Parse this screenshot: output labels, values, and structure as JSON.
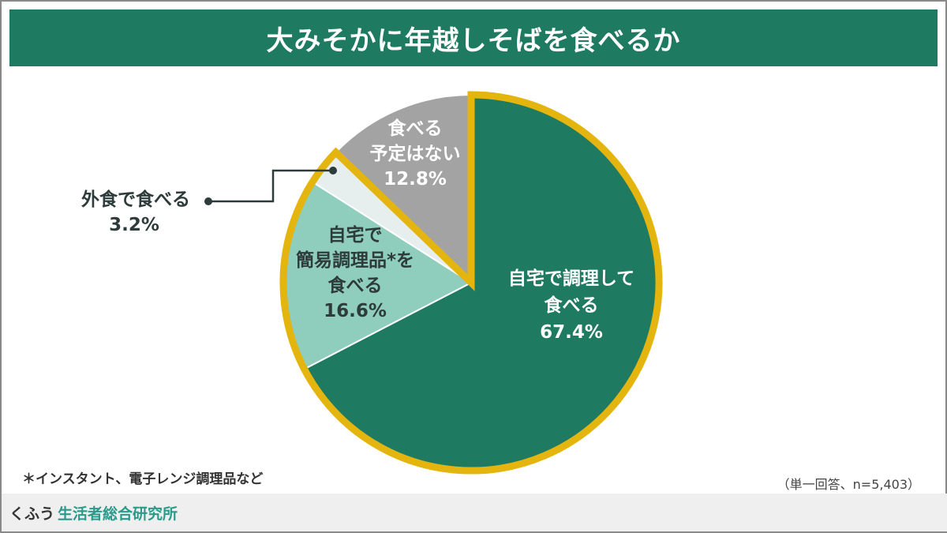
{
  "title": "大みそかに年越しそばを食べるか",
  "chart_data": {
    "type": "pie",
    "title": "大みそかに年越しそばを食べるか",
    "start": "top",
    "direction": "clockwise",
    "slices": [
      {
        "label_lines": [
          "自宅で調理して",
          "食べる"
        ],
        "value": 67.4,
        "value_label": "67.4%",
        "color": "#1f7a62",
        "text_color": "#ffffff"
      },
      {
        "label_lines": [
          "自宅で",
          "簡易調理品*を",
          "食べる"
        ],
        "value": 16.6,
        "value_label": "16.6%",
        "color": "#8fcdbd",
        "text_color": "#2d3b3a"
      },
      {
        "label_lines": [
          "外食で食べる"
        ],
        "value": 3.2,
        "value_label": "3.2%",
        "color": "#e6efee",
        "text_color": "#2d3b3a"
      },
      {
        "label_lines": [
          "食べる",
          "予定はない"
        ],
        "value": 12.8,
        "value_label": "12.8%",
        "color": "#a3a3a3",
        "text_color": "#ffffff"
      }
    ],
    "highlight_outline_color": "#e3b50e"
  },
  "footnote": "＊インスタント、電子レンジ調理品など",
  "sample_note": "（単一回答、n=5,403）",
  "footer": {
    "brand_prefix": "くふう",
    "brand_name": "生活者総合研究所"
  }
}
